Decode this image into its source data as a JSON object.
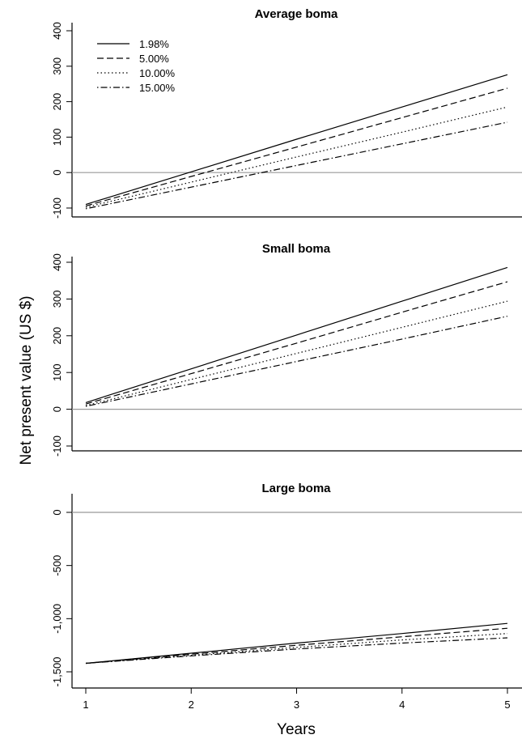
{
  "chart_data": {
    "type": "line",
    "ylabel": "Net present value (US $)",
    "xlabel": "Years",
    "x": [
      1,
      2,
      3,
      4,
      5
    ],
    "x_ticks": [
      "1",
      "2",
      "3",
      "4",
      "5"
    ],
    "xlim": [
      1,
      5
    ],
    "legend": {
      "position": "top-left",
      "entries": [
        "1.98%",
        "5.00%",
        "10.00%",
        "15.00%"
      ],
      "styles": [
        "solid",
        "dashed",
        "dotted",
        "dot-dash"
      ]
    },
    "line_color": "#000000",
    "zero_line_color": "#999999",
    "panels": [
      {
        "title": "Average boma",
        "ylim": [
          -100,
          400
        ],
        "y_ticks": [
          -100,
          0,
          100,
          200,
          300,
          400
        ],
        "y_tick_labels": [
          "-100",
          "0",
          "100",
          "200",
          "300",
          "400"
        ],
        "series": [
          {
            "name": "1.98%",
            "values": [
              -90,
              2,
              94,
              185,
              276
            ]
          },
          {
            "name": "5.00%",
            "values": [
              -94,
              -11,
              72,
              155,
              238
            ]
          },
          {
            "name": "10.00%",
            "values": [
              -98,
              -27,
              44,
              114,
              185
            ]
          },
          {
            "name": "15.00%",
            "values": [
              -102,
              -41,
              20,
              81,
              142
            ]
          }
        ]
      },
      {
        "title": "Small boma",
        "ylim": [
          -100,
          400
        ],
        "y_ticks": [
          -100,
          0,
          100,
          200,
          300,
          400
        ],
        "y_tick_labels": [
          "-100",
          "0",
          "100",
          "200",
          "300",
          "400"
        ],
        "series": [
          {
            "name": "1.98%",
            "values": [
              18,
              110,
              202,
              294,
              386
            ]
          },
          {
            "name": "5.00%",
            "values": [
              14,
              97,
              180,
              264,
              347
            ]
          },
          {
            "name": "10.00%",
            "values": [
              10,
              81,
              152,
              223,
              294
            ]
          },
          {
            "name": "15.00%",
            "values": [
              8,
              69,
              130,
              191,
              253
            ]
          }
        ]
      },
      {
        "title": "Large boma",
        "ylim": [
          -1500,
          0
        ],
        "y_ticks": [
          -1500,
          -1000,
          -500,
          0
        ],
        "y_tick_labels": [
          "-1,500",
          "-1,000",
          "-500",
          "0"
        ],
        "series": [
          {
            "name": "1.98%",
            "values": [
              -1420,
              -1325,
              -1230,
              -1140,
              -1045
            ]
          },
          {
            "name": "5.00%",
            "values": [
              -1420,
              -1335,
              -1250,
              -1170,
              -1090
            ]
          },
          {
            "name": "10.00%",
            "values": [
              -1420,
              -1345,
              -1270,
              -1200,
              -1140
            ]
          },
          {
            "name": "15.00%",
            "values": [
              -1420,
              -1350,
              -1285,
              -1230,
              -1180
            ]
          }
        ]
      }
    ]
  }
}
